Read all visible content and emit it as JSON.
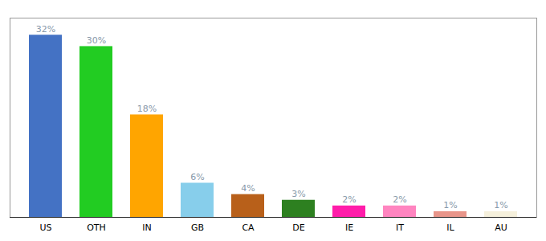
{
  "chart_data": {
    "type": "bar",
    "categories": [
      "US",
      "OTH",
      "IN",
      "GB",
      "CA",
      "DE",
      "IE",
      "IT",
      "IL",
      "AU"
    ],
    "values": [
      32,
      30,
      18,
      6,
      4,
      3,
      2,
      2,
      1,
      1
    ],
    "value_labels": [
      "32%",
      "30%",
      "18%",
      "6%",
      "4%",
      "3%",
      "2%",
      "2%",
      "1%",
      "1%"
    ],
    "colors": [
      "#4472c4",
      "#22cc22",
      "#ffa500",
      "#87ceeb",
      "#b8601a",
      "#2d8020",
      "#ff1daa",
      "#ff85c0",
      "#e8958a",
      "#f5f0dc"
    ],
    "ylim": [
      0,
      35
    ],
    "data_labels": true,
    "tick_labels": "x",
    "grid": false
  }
}
